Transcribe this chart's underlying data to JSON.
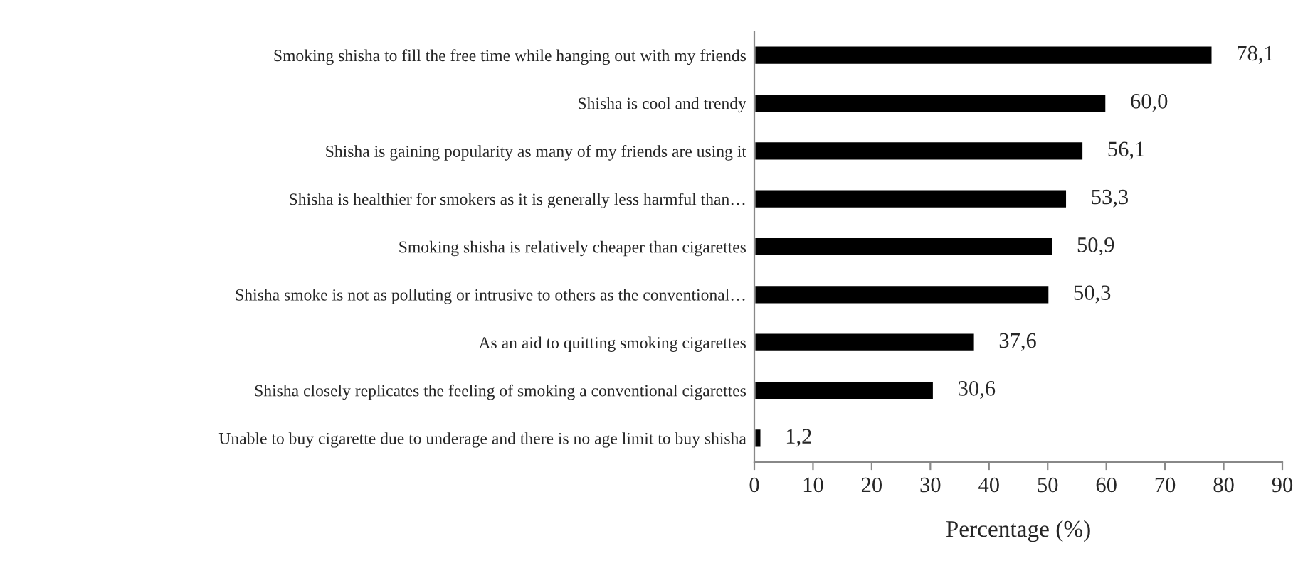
{
  "chart_data": {
    "type": "bar",
    "orientation": "horizontal",
    "xlabel": "Percentage (%)",
    "categories": [
      "Smoking shisha to fill the free time while hanging out with my friends",
      "Shisha is cool and trendy",
      "Shisha is gaining popularity as many of my friends are using it",
      "Shisha is healthier for smokers as it is generally less harmful than…",
      "Smoking shisha is relatively cheaper than cigarettes",
      "Shisha smoke is not as polluting or intrusive to others as the conventional…",
      "As an aid to quitting smoking cigarettes",
      "Shisha closely replicates the feeling of smoking a conventional cigarettes",
      "Unable to buy cigarette due to underage and there is no age limit to buy shisha"
    ],
    "values": [
      78.1,
      60.0,
      56.1,
      53.3,
      50.9,
      50.3,
      37.6,
      30.6,
      1.2
    ],
    "value_labels": [
      "78,1",
      "60,0",
      "56,1",
      "53,3",
      "50,9",
      "50,3",
      "37,6",
      "30,6",
      "1,2"
    ],
    "color": "#000000",
    "xlim": [
      0,
      90
    ],
    "xticks": [
      0,
      10,
      20,
      30,
      40,
      50,
      60,
      70,
      80,
      90
    ],
    "grid": false,
    "legend": false
  }
}
